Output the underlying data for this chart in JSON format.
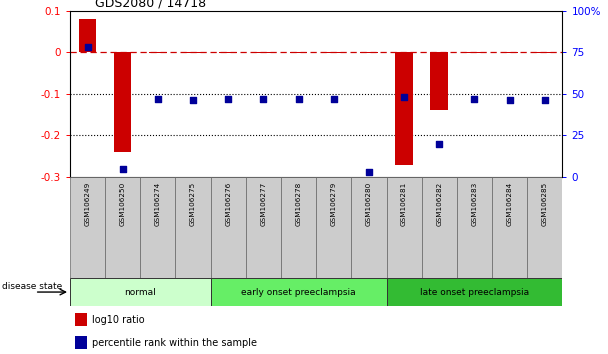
{
  "title": "GDS2080 / 14718",
  "samples": [
    "GSM106249",
    "GSM106250",
    "GSM106274",
    "GSM106275",
    "GSM106276",
    "GSM106277",
    "GSM106278",
    "GSM106279",
    "GSM106280",
    "GSM106281",
    "GSM106282",
    "GSM106283",
    "GSM106284",
    "GSM106285"
  ],
  "log10_ratio": [
    0.08,
    -0.24,
    -0.003,
    -0.003,
    -0.003,
    -0.003,
    -0.003,
    -0.003,
    -0.003,
    -0.27,
    -0.14,
    -0.003,
    -0.003,
    -0.003
  ],
  "percentile_rank": [
    78,
    5,
    47,
    46,
    47,
    47,
    47,
    47,
    3,
    48,
    20,
    47,
    46,
    46
  ],
  "ylim_left": [
    -0.3,
    0.1
  ],
  "ylim_right": [
    0,
    100
  ],
  "yticks_left": [
    -0.3,
    -0.2,
    -0.1,
    0.0,
    0.1
  ],
  "ytick_left_labels": [
    "-0.3",
    "-0.2",
    "-0.1",
    "0",
    "0.1"
  ],
  "yticks_right": [
    0,
    25,
    50,
    75,
    100
  ],
  "ytick_right_labels": [
    "0",
    "25",
    "50",
    "75",
    "100%"
  ],
  "groups": [
    {
      "label": "normal",
      "start": 0,
      "end": 4,
      "color": "#ccffcc"
    },
    {
      "label": "early onset preeclampsia",
      "start": 4,
      "end": 9,
      "color": "#66ee66"
    },
    {
      "label": "late onset preeclampsia",
      "start": 9,
      "end": 14,
      "color": "#33bb33"
    }
  ],
  "bar_color": "#cc0000",
  "dot_color": "#000099",
  "dashed_line_color": "#cc0000",
  "dotted_line_color": "#000000",
  "background_color": "#ffffff",
  "tick_area_color": "#cccccc",
  "bar_width": 0.5,
  "dot_size": 20
}
